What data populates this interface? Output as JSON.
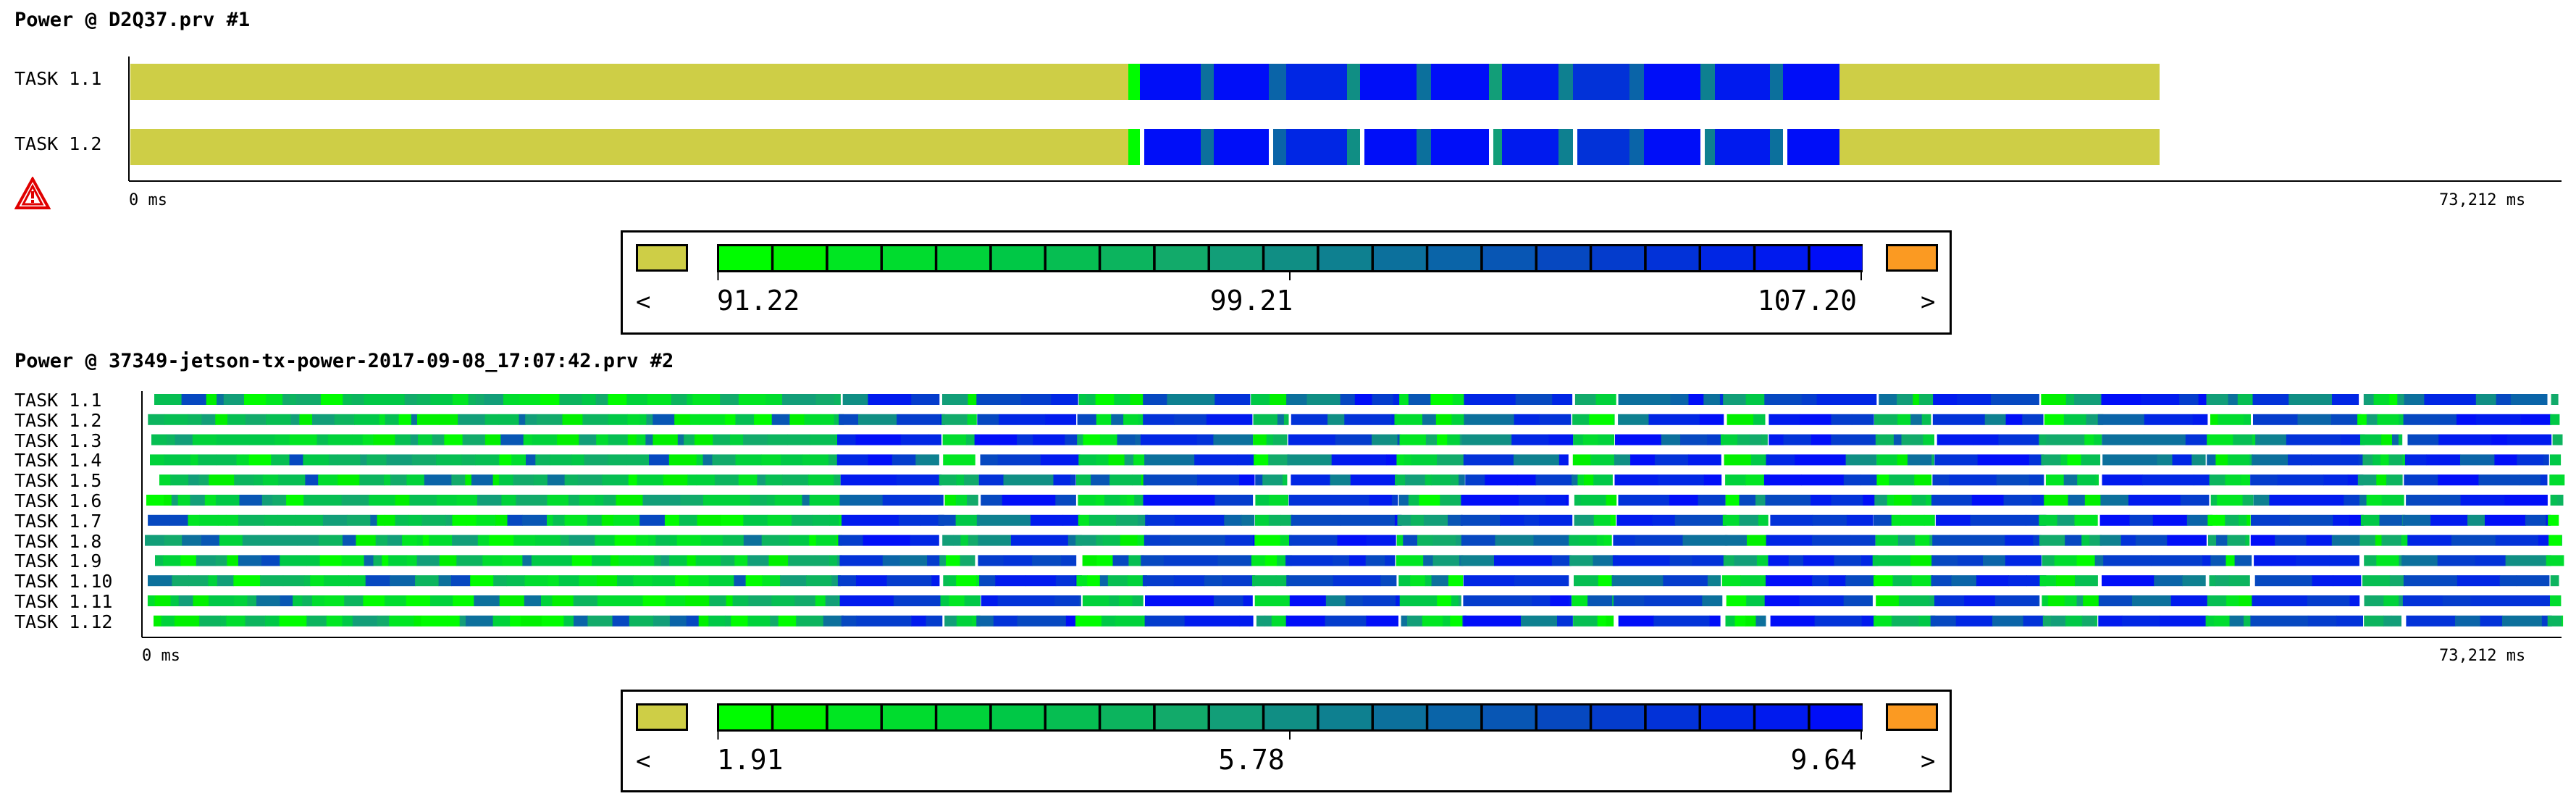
{
  "chart_data": [
    {
      "type": "heatmap",
      "title": "Power @ D2Q37.prv #1",
      "rows": [
        "TASK 1.1",
        "TASK 1.2"
      ],
      "x_start_label": "0 ms",
      "x_end_label": "73,212 ms",
      "xlim": [
        0,
        73212
      ],
      "colors": {
        "under": "#cece46",
        "over": "#fb9a22",
        "scale": [
          "#00fc00",
          "#00f000",
          "#00e622",
          "#00dc2e",
          "#00d23a",
          "#00c846",
          "#06be52",
          "#0cb45e",
          "#12aa6a",
          "#129e78",
          "#108e84",
          "#0e8090",
          "#0c709c",
          "#0a64a8",
          "#0856b4",
          "#0648c0",
          "#043ccc",
          "#0232d8",
          "#0026e4",
          "#001aee",
          "#000ef8"
        ]
      },
      "legend": {
        "min": "91.22",
        "mid": "99.21",
        "max": "107.20",
        "left_arrow": "<",
        "right_arrow": ">"
      }
    },
    {
      "type": "heatmap",
      "title": "Power @ 37349-jetson-tx-power-2017-09-08_17:07:42.prv #2",
      "rows": [
        "TASK 1.1",
        "TASK 1.2",
        "TASK 1.3",
        "TASK 1.4",
        "TASK 1.5",
        "TASK 1.6",
        "TASK 1.7",
        "TASK 1.8",
        "TASK 1.9",
        "TASK 1.10",
        "TASK 1.11",
        "TASK 1.12"
      ],
      "x_start_label": "0 ms",
      "x_end_label": "73,212 ms",
      "xlim": [
        0,
        73212
      ],
      "legend": {
        "min": "1.91",
        "mid": "5.78",
        "max": "9.64",
        "left_arrow": "<",
        "right_arrow": ">"
      }
    }
  ],
  "warning_icon": "warning-triangle-icon"
}
